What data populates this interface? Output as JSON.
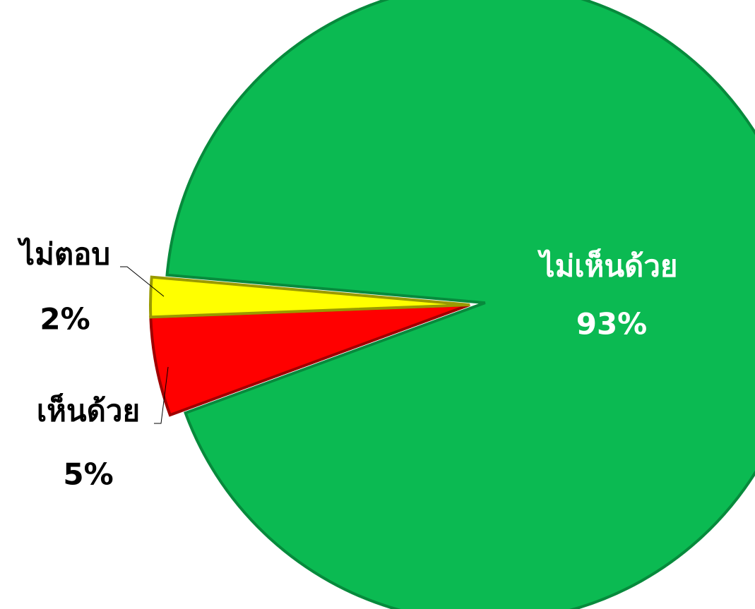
{
  "chart_data": {
    "type": "pie",
    "categories": [
      "ไม่เห็นด้วย",
      "เห็นด้วย",
      "ไม่ตอบ"
    ],
    "values": [
      93,
      5,
      2
    ],
    "value_labels": [
      "93%",
      "5%",
      "2%"
    ],
    "colors": [
      "#0bba52",
      "#ff0000",
      "#ffff00"
    ]
  }
}
